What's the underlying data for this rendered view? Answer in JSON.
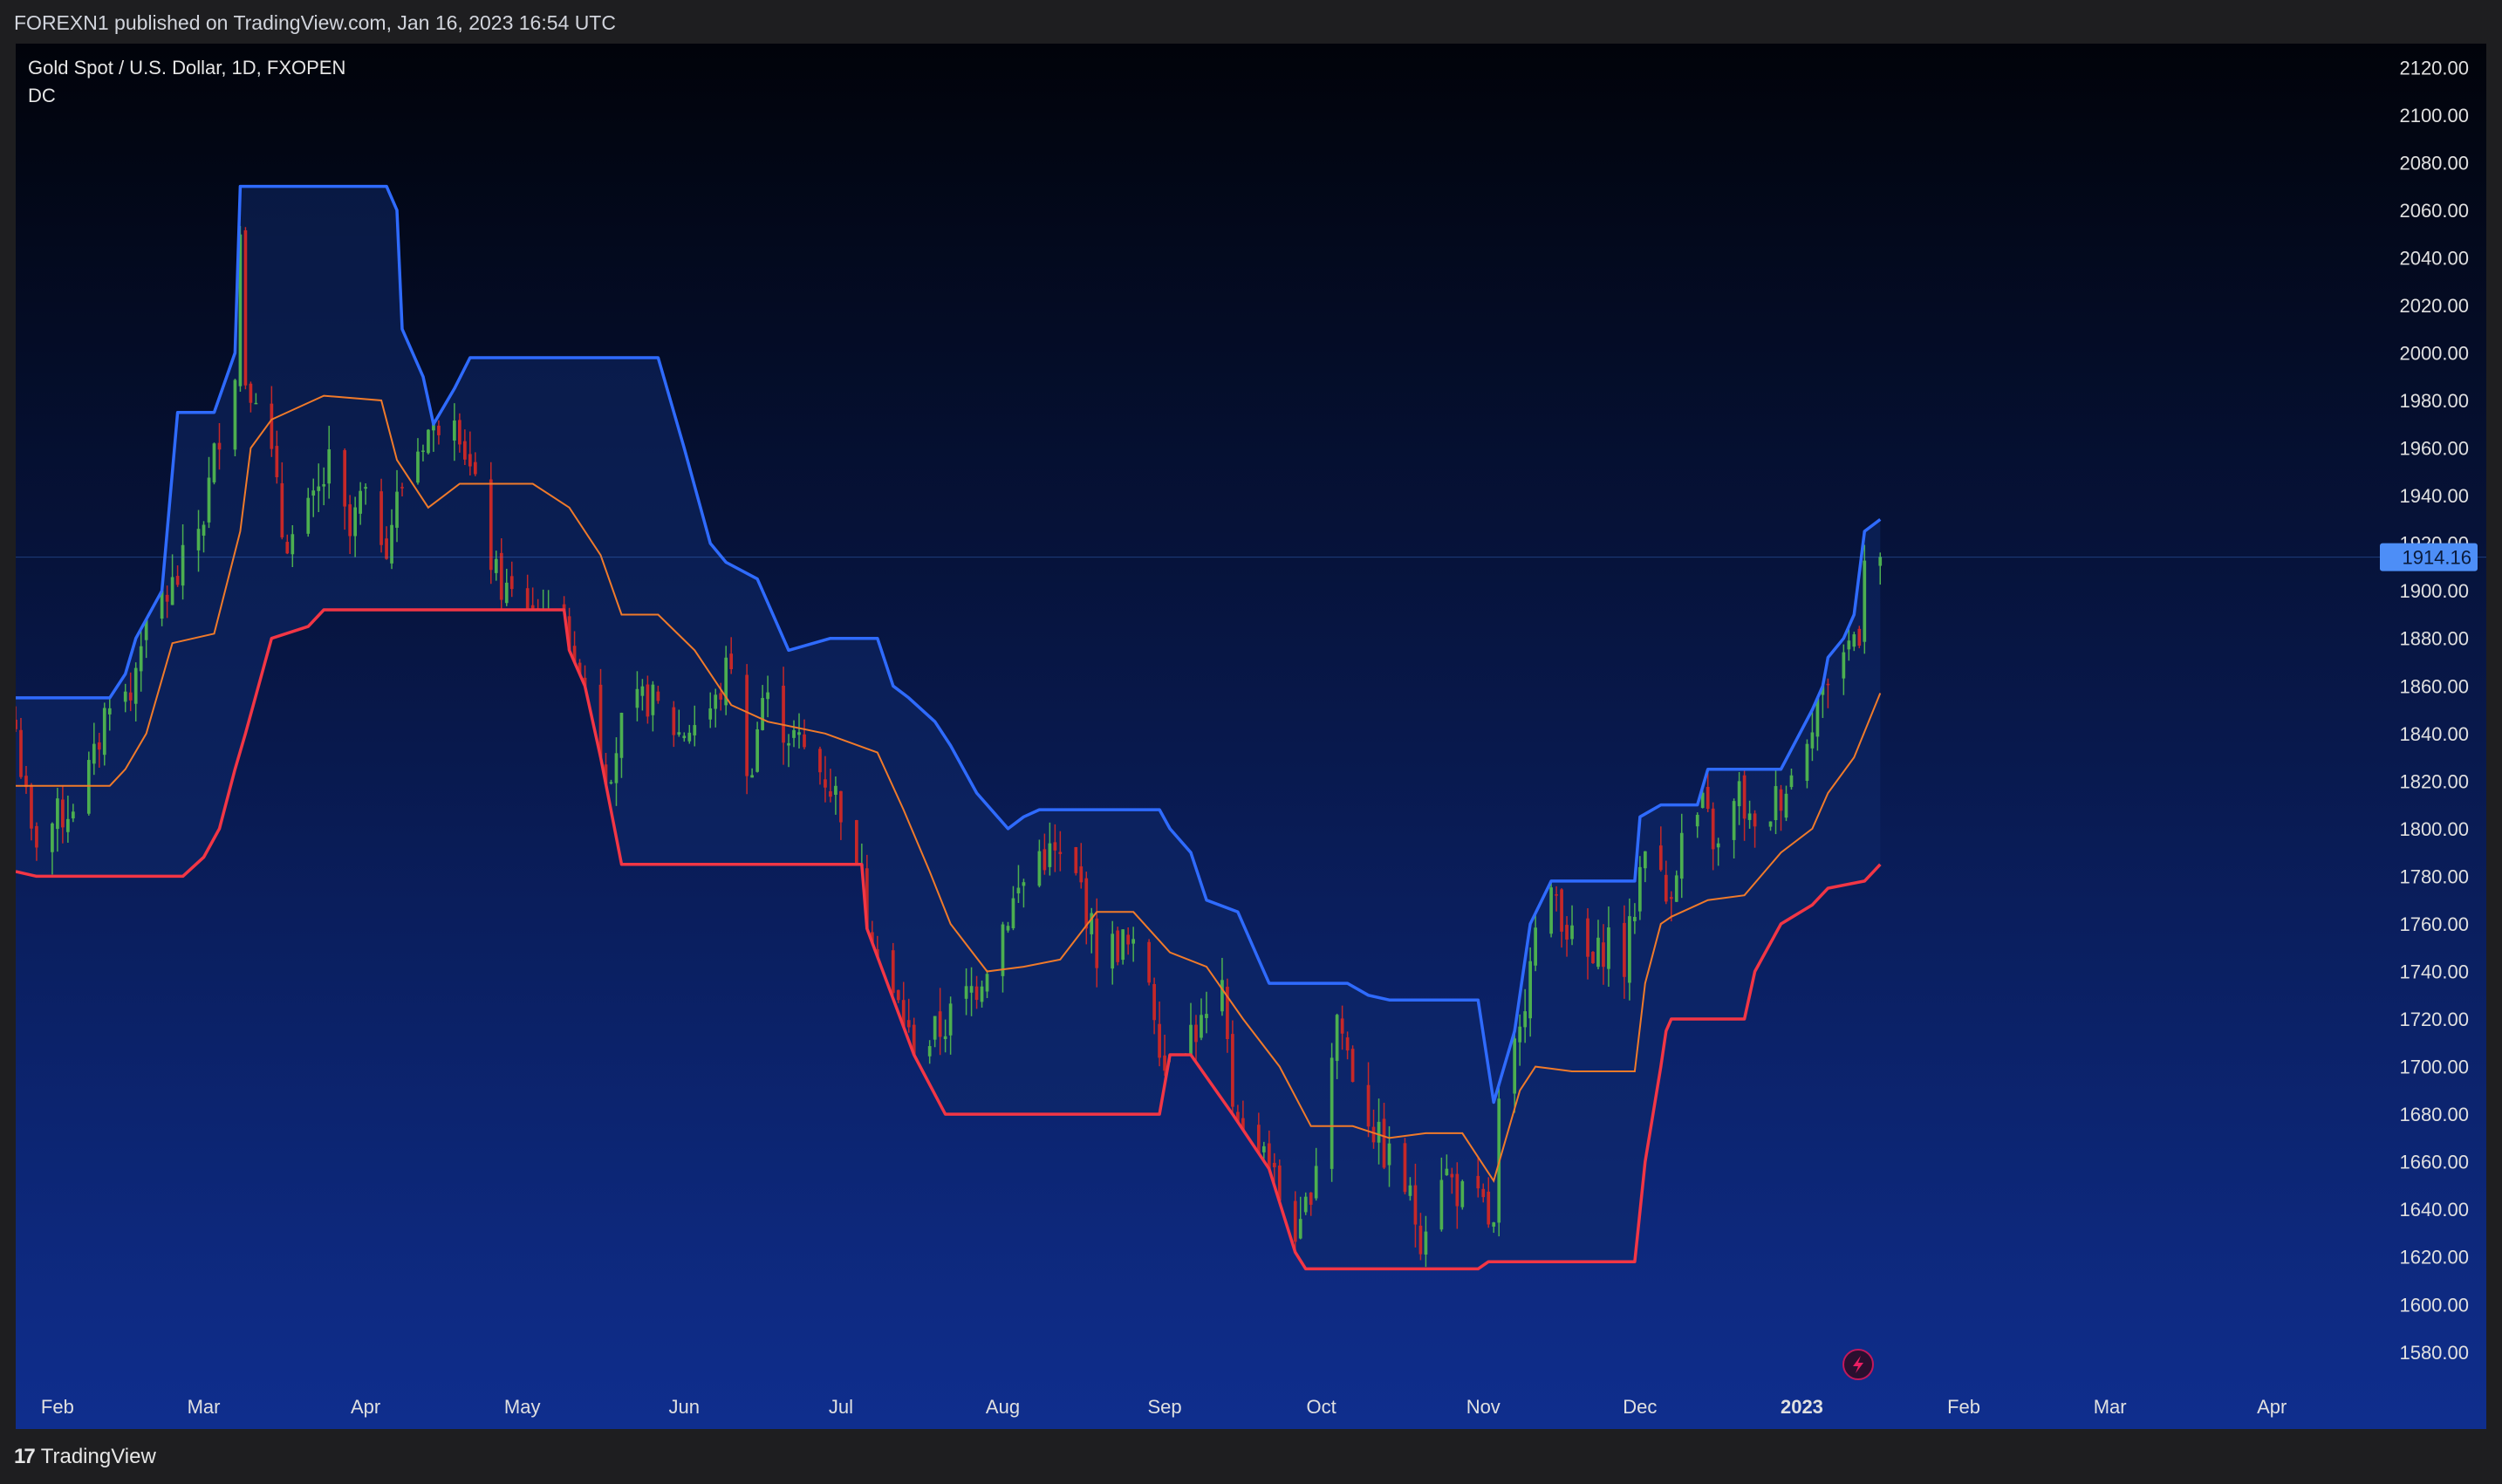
{
  "header": {
    "text": "FOREXN1 published on TradingView.com, Jan 16, 2023 16:54 UTC"
  },
  "legend": {
    "symbol": "Gold Spot / U.S. Dollar, 1D, FXOPEN",
    "indicator": "DC"
  },
  "footer": {
    "brand": "TradingView"
  },
  "colors": {
    "bg_top": "#01030a",
    "bg_bottom": "#0f2e8e",
    "upper": "#2f6bff",
    "lower": "#f23645",
    "basis": "#f07a2a",
    "fill": "#0e2868",
    "candle_up": "#4caf50",
    "candle_down": "#c62828",
    "price_label_bg": "#4d8ef7",
    "axis_text": "#e0e0e0"
  },
  "chart_data": {
    "type": "candlestick",
    "ylim": [
      1566,
      2130
    ],
    "y_ticks": [
      1580,
      1600,
      1620,
      1640,
      1660,
      1680,
      1700,
      1720,
      1740,
      1760,
      1780,
      1800,
      1820,
      1840,
      1860,
      1880,
      1900,
      1920,
      1940,
      1960,
      1980,
      2000,
      2020,
      2040,
      2060,
      2080,
      2100,
      2120
    ],
    "y_tick_labels": [
      "1580.00",
      "1600.00",
      "1620.00",
      "1640.00",
      "1660.00",
      "1680.00",
      "1700.00",
      "1720.00",
      "1740.00",
      "1760.00",
      "1780.00",
      "1800.00",
      "1820.00",
      "1840.00",
      "1860.00",
      "1880.00",
      "1900.00",
      "1920.00",
      "1940.00",
      "1960.00",
      "1980.00",
      "2000.00",
      "2020.00",
      "2040.00",
      "2060.00",
      "2080.00",
      "2100.00",
      "2120.00"
    ],
    "x_ticks": [
      {
        "label": "Feb",
        "date": "2022-02-01"
      },
      {
        "label": "Mar",
        "date": "2022-03-01"
      },
      {
        "label": "Apr",
        "date": "2022-04-01"
      },
      {
        "label": "May",
        "date": "2022-05-01"
      },
      {
        "label": "Jun",
        "date": "2022-06-01"
      },
      {
        "label": "Jul",
        "date": "2022-07-01"
      },
      {
        "label": "Aug",
        "date": "2022-08-01"
      },
      {
        "label": "Sep",
        "date": "2022-09-01"
      },
      {
        "label": "Oct",
        "date": "2022-10-01"
      },
      {
        "label": "Nov",
        "date": "2022-11-01"
      },
      {
        "label": "Dec",
        "date": "2022-12-01"
      },
      {
        "label": "2023",
        "date": "2023-01-01",
        "bold": true
      },
      {
        "label": "Feb",
        "date": "2023-02-01"
      },
      {
        "label": "Mar",
        "date": "2023-03-01"
      },
      {
        "label": "Apr",
        "date": "2023-04-01"
      }
    ],
    "x_range": [
      "2022-01-24",
      "2023-04-20"
    ],
    "last_price": 1914.16,
    "last_price_label": "1914.16",
    "upper_band": [
      [
        "2022-01-24",
        1855
      ],
      [
        "2022-02-11",
        1855
      ],
      [
        "2022-02-14",
        1865
      ],
      [
        "2022-02-16",
        1880
      ],
      [
        "2022-02-21",
        1900
      ],
      [
        "2022-02-24",
        1975
      ],
      [
        "2022-03-03",
        1975
      ],
      [
        "2022-03-07",
        2000
      ],
      [
        "2022-03-08",
        2070
      ],
      [
        "2022-04-05",
        2070
      ],
      [
        "2022-04-07",
        2060
      ],
      [
        "2022-04-08",
        2010
      ],
      [
        "2022-04-12",
        1990
      ],
      [
        "2022-04-14",
        1970
      ],
      [
        "2022-04-18",
        1985
      ],
      [
        "2022-04-21",
        1998
      ],
      [
        "2022-05-27",
        1998
      ],
      [
        "2022-06-01",
        1960
      ],
      [
        "2022-06-06",
        1920
      ],
      [
        "2022-06-09",
        1912
      ],
      [
        "2022-06-15",
        1905
      ],
      [
        "2022-06-21",
        1875
      ],
      [
        "2022-06-29",
        1880
      ],
      [
        "2022-07-08",
        1880
      ],
      [
        "2022-07-11",
        1860
      ],
      [
        "2022-07-14",
        1855
      ],
      [
        "2022-07-19",
        1845
      ],
      [
        "2022-07-22",
        1835
      ],
      [
        "2022-07-27",
        1815
      ],
      [
        "2022-08-02",
        1800
      ],
      [
        "2022-08-05",
        1805
      ],
      [
        "2022-08-08",
        1808
      ],
      [
        "2022-08-31",
        1808
      ],
      [
        "2022-09-02",
        1800
      ],
      [
        "2022-09-06",
        1790
      ],
      [
        "2022-09-09",
        1770
      ],
      [
        "2022-09-15",
        1765
      ],
      [
        "2022-09-19",
        1745
      ],
      [
        "2022-09-21",
        1735
      ],
      [
        "2022-10-06",
        1735
      ],
      [
        "2022-10-10",
        1730
      ],
      [
        "2022-10-14",
        1728
      ],
      [
        "2022-10-31",
        1728
      ],
      [
        "2022-11-03",
        1685
      ],
      [
        "2022-11-07",
        1715
      ],
      [
        "2022-11-10",
        1760
      ],
      [
        "2022-11-14",
        1778
      ],
      [
        "2022-11-30",
        1778
      ],
      [
        "2022-12-01",
        1805
      ],
      [
        "2022-12-05",
        1810
      ],
      [
        "2022-12-12",
        1810
      ],
      [
        "2022-12-14",
        1825
      ],
      [
        "2022-12-28",
        1825
      ],
      [
        "2023-01-03",
        1850
      ],
      [
        "2023-01-05",
        1860
      ],
      [
        "2023-01-06",
        1872
      ],
      [
        "2023-01-09",
        1880
      ],
      [
        "2023-01-11",
        1890
      ],
      [
        "2023-01-13",
        1925
      ],
      [
        "2023-01-16",
        1930
      ]
    ],
    "lower_band": [
      [
        "2022-01-24",
        1782
      ],
      [
        "2022-01-28",
        1780
      ],
      [
        "2022-02-25",
        1780
      ],
      [
        "2022-03-01",
        1788
      ],
      [
        "2022-03-04",
        1800
      ],
      [
        "2022-03-07",
        1825
      ],
      [
        "2022-03-09",
        1840
      ],
      [
        "2022-03-14",
        1880
      ],
      [
        "2022-03-21",
        1885
      ],
      [
        "2022-03-24",
        1892
      ],
      [
        "2022-03-29",
        1892
      ],
      [
        "2022-03-30",
        1892
      ],
      [
        "2022-05-09",
        1892
      ],
      [
        "2022-05-10",
        1875
      ],
      [
        "2022-05-13",
        1860
      ],
      [
        "2022-05-16",
        1830
      ],
      [
        "2022-05-20",
        1785
      ],
      [
        "2022-06-24",
        1785
      ],
      [
        "2022-07-05",
        1785
      ],
      [
        "2022-07-06",
        1758
      ],
      [
        "2022-07-15",
        1705
      ],
      [
        "2022-07-21",
        1680
      ],
      [
        "2022-08-31",
        1680
      ],
      [
        "2022-09-02",
        1705
      ],
      [
        "2022-09-06",
        1705
      ],
      [
        "2022-09-14",
        1680
      ],
      [
        "2022-09-21",
        1657
      ],
      [
        "2022-09-26",
        1622
      ],
      [
        "2022-09-28",
        1615
      ],
      [
        "2022-10-31",
        1615
      ],
      [
        "2022-11-02",
        1618
      ],
      [
        "2022-11-30",
        1618
      ],
      [
        "2022-12-02",
        1660
      ],
      [
        "2022-12-05",
        1700
      ],
      [
        "2022-12-06",
        1715
      ],
      [
        "2022-12-07",
        1720
      ],
      [
        "2022-12-21",
        1720
      ],
      [
        "2022-12-23",
        1740
      ],
      [
        "2022-12-28",
        1760
      ],
      [
        "2023-01-03",
        1768
      ],
      [
        "2023-01-06",
        1775
      ],
      [
        "2023-01-13",
        1778
      ],
      [
        "2023-01-16",
        1785
      ]
    ],
    "basis": [
      [
        "2022-01-24",
        1818
      ],
      [
        "2022-02-11",
        1818
      ],
      [
        "2022-02-14",
        1825
      ],
      [
        "2022-02-18",
        1840
      ],
      [
        "2022-02-23",
        1878
      ],
      [
        "2022-03-03",
        1882
      ],
      [
        "2022-03-08",
        1925
      ],
      [
        "2022-03-10",
        1960
      ],
      [
        "2022-03-14",
        1972
      ],
      [
        "2022-03-24",
        1982
      ],
      [
        "2022-04-04",
        1980
      ],
      [
        "2022-04-07",
        1955
      ],
      [
        "2022-04-13",
        1935
      ],
      [
        "2022-04-19",
        1945
      ],
      [
        "2022-04-27",
        1945
      ],
      [
        "2022-05-03",
        1945
      ],
      [
        "2022-05-10",
        1935
      ],
      [
        "2022-05-16",
        1915
      ],
      [
        "2022-05-20",
        1890
      ],
      [
        "2022-05-27",
        1890
      ],
      [
        "2022-06-03",
        1875
      ],
      [
        "2022-06-10",
        1852
      ],
      [
        "2022-06-17",
        1845
      ],
      [
        "2022-06-28",
        1840
      ],
      [
        "2022-07-08",
        1832
      ],
      [
        "2022-07-13",
        1808
      ],
      [
        "2022-07-18",
        1782
      ],
      [
        "2022-07-22",
        1760
      ],
      [
        "2022-07-29",
        1740
      ],
      [
        "2022-08-05",
        1742
      ],
      [
        "2022-08-12",
        1745
      ],
      [
        "2022-08-19",
        1765
      ],
      [
        "2022-08-26",
        1765
      ],
      [
        "2022-09-02",
        1748
      ],
      [
        "2022-09-09",
        1742
      ],
      [
        "2022-09-16",
        1720
      ],
      [
        "2022-09-23",
        1700
      ],
      [
        "2022-09-29",
        1675
      ],
      [
        "2022-10-07",
        1675
      ],
      [
        "2022-10-14",
        1670
      ],
      [
        "2022-10-21",
        1672
      ],
      [
        "2022-10-28",
        1672
      ],
      [
        "2022-11-03",
        1652
      ],
      [
        "2022-11-08",
        1690
      ],
      [
        "2022-11-11",
        1700
      ],
      [
        "2022-11-18",
        1698
      ],
      [
        "2022-11-30",
        1698
      ],
      [
        "2022-12-02",
        1735
      ],
      [
        "2022-12-05",
        1760
      ],
      [
        "2022-12-07",
        1763
      ],
      [
        "2022-12-14",
        1770
      ],
      [
        "2022-12-21",
        1772
      ],
      [
        "2022-12-28",
        1790
      ],
      [
        "2023-01-03",
        1800
      ],
      [
        "2023-01-06",
        1815
      ],
      [
        "2023-01-11",
        1830
      ],
      [
        "2023-01-16",
        1857
      ]
    ],
    "close_path": [
      [
        "2022-01-24",
        1842
      ],
      [
        "2022-01-27",
        1795
      ],
      [
        "2022-02-03",
        1808
      ],
      [
        "2022-02-08",
        1828
      ],
      [
        "2022-02-11",
        1858
      ],
      [
        "2022-02-15",
        1854
      ],
      [
        "2022-02-18",
        1898
      ],
      [
        "2022-02-22",
        1898
      ],
      [
        "2022-02-24",
        1905
      ],
      [
        "2022-03-01",
        1932
      ],
      [
        "2022-03-04",
        1968
      ],
      [
        "2022-03-07",
        1995
      ],
      [
        "2022-03-08",
        2050
      ],
      [
        "2022-03-09",
        1990
      ],
      [
        "2022-03-11",
        1986
      ],
      [
        "2022-03-14",
        1955
      ],
      [
        "2022-03-16",
        1925
      ],
      [
        "2022-03-18",
        1922
      ],
      [
        "2022-03-22",
        1935
      ],
      [
        "2022-03-25",
        1952
      ],
      [
        "2022-03-29",
        1922
      ],
      [
        "2022-03-31",
        1938
      ],
      [
        "2022-04-05",
        1922
      ],
      [
        "2022-04-08",
        1945
      ],
      [
        "2022-04-12",
        1965
      ],
      [
        "2022-04-18",
        1980
      ],
      [
        "2022-04-21",
        1950
      ],
      [
        "2022-04-26",
        1905
      ],
      [
        "2022-04-29",
        1897
      ],
      [
        "2022-05-04",
        1880
      ],
      [
        "2022-05-09",
        1855
      ],
      [
        "2022-05-12",
        1825
      ],
      [
        "2022-05-16",
        1815
      ],
      [
        "2022-05-20",
        1842
      ],
      [
        "2022-05-25",
        1855
      ],
      [
        "2022-05-31",
        1840
      ],
      [
        "2022-06-07",
        1852
      ],
      [
        "2022-06-10",
        1872
      ],
      [
        "2022-06-13",
        1818
      ],
      [
        "2022-06-16",
        1855
      ],
      [
        "2022-06-22",
        1838
      ],
      [
        "2022-06-28",
        1822
      ],
      [
        "2022-07-01",
        1810
      ],
      [
        "2022-07-06",
        1740
      ],
      [
        "2022-07-12",
        1725
      ],
      [
        "2022-07-15",
        1705
      ],
      [
        "2022-07-21",
        1718
      ],
      [
        "2022-07-27",
        1735
      ],
      [
        "2022-08-02",
        1765
      ],
      [
        "2022-08-08",
        1790
      ],
      [
        "2022-08-11",
        1788
      ],
      [
        "2022-08-16",
        1775
      ],
      [
        "2022-08-19",
        1748
      ],
      [
        "2022-08-24",
        1752
      ],
      [
        "2022-08-29",
        1738
      ],
      [
        "2022-09-01",
        1700
      ],
      [
        "2022-09-06",
        1715
      ],
      [
        "2022-09-09",
        1718
      ],
      [
        "2022-09-12",
        1728
      ],
      [
        "2022-09-15",
        1665
      ],
      [
        "2022-09-20",
        1668
      ],
      [
        "2022-09-23",
        1645
      ],
      [
        "2022-09-27",
        1628
      ],
      [
        "2022-09-30",
        1662
      ],
      [
        "2022-10-04",
        1722
      ],
      [
        "2022-10-07",
        1698
      ],
      [
        "2022-10-12",
        1668
      ],
      [
        "2022-10-17",
        1650
      ],
      [
        "2022-10-20",
        1630
      ],
      [
        "2022-10-24",
        1658
      ],
      [
        "2022-10-28",
        1645
      ],
      [
        "2022-11-01",
        1640
      ],
      [
        "2022-11-03",
        1630
      ],
      [
        "2022-11-04",
        1680
      ],
      [
        "2022-11-08",
        1712
      ],
      [
        "2022-11-10",
        1752
      ],
      [
        "2022-11-15",
        1772
      ],
      [
        "2022-11-18",
        1752
      ],
      [
        "2022-11-22",
        1742
      ],
      [
        "2022-11-25",
        1755
      ],
      [
        "2022-11-28",
        1742
      ],
      [
        "2022-11-30",
        1768
      ],
      [
        "2022-12-02",
        1798
      ],
      [
        "2022-12-06",
        1770
      ],
      [
        "2022-12-09",
        1795
      ],
      [
        "2022-12-13",
        1808
      ],
      [
        "2022-12-16",
        1790
      ],
      [
        "2022-12-20",
        1815
      ],
      [
        "2022-12-23",
        1795
      ],
      [
        "2022-12-27",
        1812
      ],
      [
        "2022-12-30",
        1822
      ],
      [
        "2023-01-04",
        1855
      ],
      [
        "2023-01-06",
        1865
      ],
      [
        "2023-01-10",
        1878
      ],
      [
        "2023-01-12",
        1885
      ],
      [
        "2023-01-13",
        1918
      ],
      [
        "2023-01-16",
        1914
      ]
    ]
  }
}
